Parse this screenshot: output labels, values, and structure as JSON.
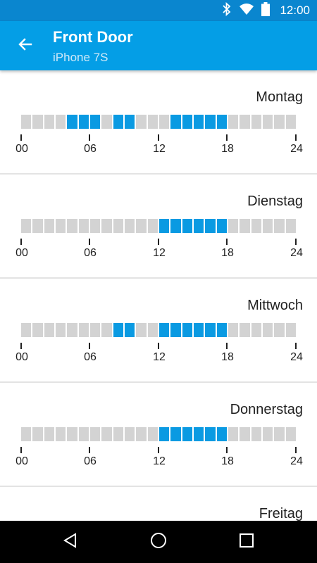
{
  "status_bar": {
    "time": "12:00",
    "icons": [
      "bluetooth-icon",
      "wifi-icon",
      "battery-icon"
    ]
  },
  "app_bar": {
    "title": "Front Door",
    "subtitle": "iPhone 7S",
    "back_icon": "arrow-back-icon"
  },
  "axis_labels": [
    "00",
    "06",
    "12",
    "18",
    "24"
  ],
  "colors": {
    "active_slot": "#0a9ae2",
    "inactive_slot": "#d3d3d3",
    "app_bar": "#049ee6",
    "status_bar": "#0a86cf"
  },
  "days": [
    {
      "name": "Montag",
      "active_hours": [
        4,
        5,
        6,
        8,
        9,
        13,
        14,
        15,
        16,
        17
      ]
    },
    {
      "name": "Dienstag",
      "active_hours": [
        12,
        13,
        14,
        15,
        16,
        17
      ]
    },
    {
      "name": "Mittwoch",
      "active_hours": [
        8,
        9,
        12,
        13,
        14,
        15,
        16,
        17
      ]
    },
    {
      "name": "Donnerstag",
      "active_hours": [
        12,
        13,
        14,
        15,
        16,
        17
      ]
    },
    {
      "name": "Freitag",
      "active_hours": []
    }
  ],
  "nav_bar": {
    "icons": [
      "back-triangle-icon",
      "home-circle-icon",
      "recents-square-icon"
    ]
  }
}
